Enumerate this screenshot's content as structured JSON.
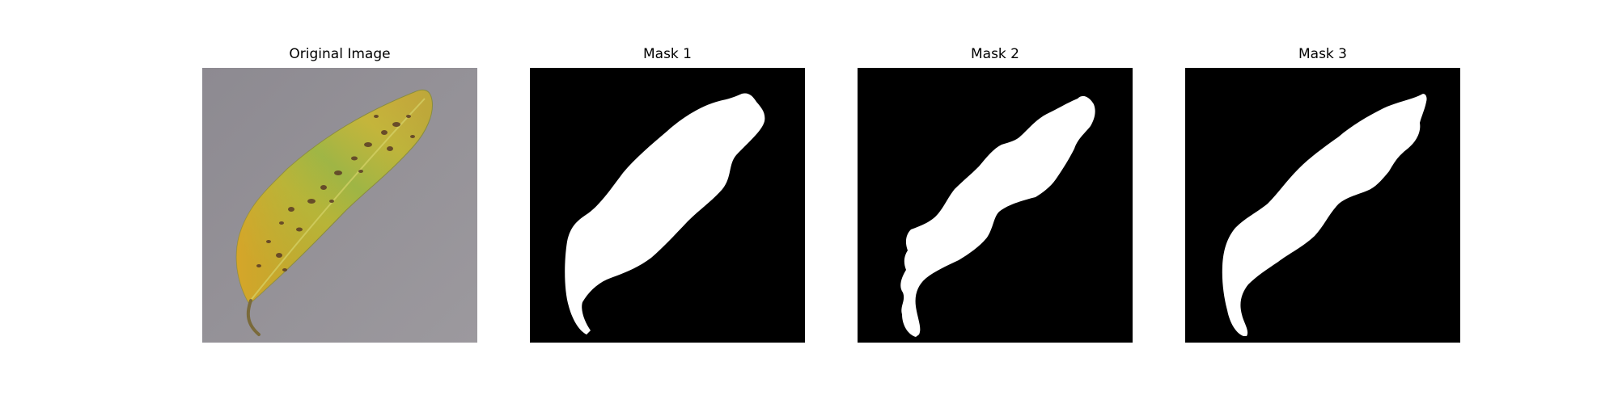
{
  "figure": {
    "panels": [
      {
        "title": "Original Image",
        "kind": "photo",
        "subject": "leaf-photo"
      },
      {
        "title": "Mask 1",
        "kind": "mask",
        "background": "#000000",
        "foreground": "#ffffff"
      },
      {
        "title": "Mask 2",
        "kind": "mask",
        "background": "#000000",
        "foreground": "#ffffff"
      },
      {
        "title": "Mask 3",
        "kind": "mask",
        "background": "#000000",
        "foreground": "#ffffff"
      }
    ]
  }
}
